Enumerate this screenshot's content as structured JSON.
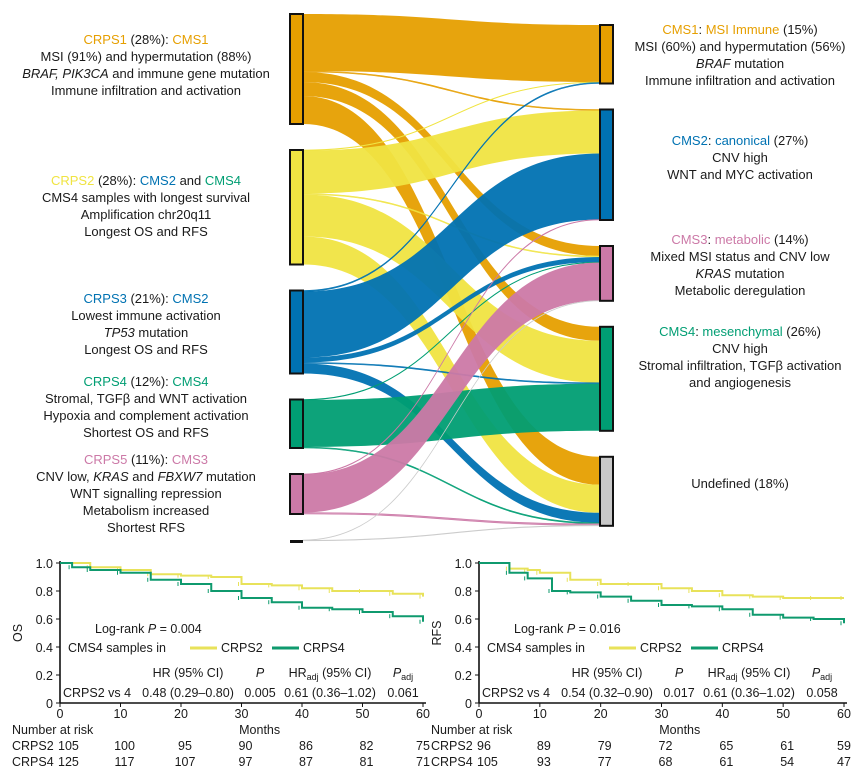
{
  "colors": {
    "CRPS1": "#E69F00",
    "CRPS2": "#F0E442",
    "CRPS3": "#0072B2",
    "CRPS4": "#009E73",
    "CRPS5": "#CC79A7",
    "unassigned": "#111111",
    "CMS1": "#E69F00",
    "CMS2": "#0072B2",
    "CMS3": "#CC79A7",
    "CMS4": "#009E73",
    "Undefined": "#C8C8C8",
    "text": "#1a1a1a"
  },
  "sankey": {
    "left_labels": [
      {
        "lines": [
          [
            {
              "t": "CRPS1",
              "c": "CRPS1"
            },
            {
              "t": " (28%): "
            },
            {
              "t": "CMS1",
              "c": "CMS1"
            }
          ],
          [
            {
              "t": "MSI (91%) and hypermutation (88%)"
            }
          ],
          [
            {
              "t": "BRAF, PIK3CA",
              "i": true
            },
            {
              "t": " and immune gene mutation"
            }
          ],
          [
            {
              "t": "Immune infiltration and activation"
            }
          ]
        ]
      },
      {
        "lines": [
          [
            {
              "t": "CRPS2",
              "c": "CRPS2"
            },
            {
              "t": " (28%): "
            },
            {
              "t": "CMS2",
              "c": "CMS2"
            },
            {
              "t": " and "
            },
            {
              "t": "CMS4",
              "c": "CMS4"
            }
          ],
          [
            {
              "t": "CMS4 samples with longest survival"
            }
          ],
          [
            {
              "t": "Amplification chr20q11"
            }
          ],
          [
            {
              "t": "Longest OS and RFS"
            }
          ]
        ]
      },
      {
        "lines": [
          [
            {
              "t": "CRPS3",
              "c": "CRPS3"
            },
            {
              "t": " (21%): "
            },
            {
              "t": "CMS2",
              "c": "CMS2"
            }
          ],
          [
            {
              "t": "Lowest immune activation"
            }
          ],
          [
            {
              "t": "TP53",
              "i": true
            },
            {
              "t": " mutation"
            }
          ],
          [
            {
              "t": "Longest OS and RFS"
            }
          ]
        ]
      },
      {
        "lines": [
          [
            {
              "t": "CRPS4",
              "c": "CRPS4"
            },
            {
              "t": " (12%): "
            },
            {
              "t": "CMS4",
              "c": "CMS4"
            }
          ],
          [
            {
              "t": "Stromal, TGFβ and WNT activation"
            }
          ],
          [
            {
              "t": "Hypoxia and complement activation"
            }
          ],
          [
            {
              "t": "Shortest OS and RFS"
            }
          ]
        ]
      },
      {
        "lines": [
          [
            {
              "t": "CRPS5",
              "c": "CRPS5"
            },
            {
              "t": " (11%): "
            },
            {
              "t": "CMS3",
              "c": "CMS3"
            }
          ],
          [
            {
              "t": "CNV low, "
            },
            {
              "t": "KRAS",
              "i": true
            },
            {
              "t": " and "
            },
            {
              "t": "FBXW7",
              "i": true
            },
            {
              "t": " mutation"
            }
          ],
          [
            {
              "t": "WNT signalling repression"
            }
          ],
          [
            {
              "t": "Metabolism increased"
            }
          ],
          [
            {
              "t": "Shortest RFS"
            }
          ]
        ]
      }
    ],
    "right_labels": [
      {
        "lines": [
          [
            {
              "t": "CMS1",
              "c": "CMS1"
            },
            {
              "t": ": "
            },
            {
              "t": "MSI Immune",
              "c": "CMS1"
            },
            {
              "t": " (15%)"
            }
          ],
          [
            {
              "t": "MSI (60%) and hypermutation (56%)"
            }
          ],
          [
            {
              "t": "BRAF",
              "i": true
            },
            {
              "t": " mutation"
            }
          ],
          [
            {
              "t": "Immune infiltration and activation"
            }
          ]
        ]
      },
      {
        "lines": [
          [
            {
              "t": "CMS2",
              "c": "CMS2"
            },
            {
              "t": ": "
            },
            {
              "t": "canonical",
              "c": "CMS2"
            },
            {
              "t": " (27%)"
            }
          ],
          [
            {
              "t": "CNV high"
            }
          ],
          [
            {
              "t": "WNT and MYC activation"
            }
          ]
        ]
      },
      {
        "lines": [
          [
            {
              "t": "CMS3",
              "c": "CMS3"
            },
            {
              "t": ": "
            },
            {
              "t": "metabolic",
              "c": "CMS3"
            },
            {
              "t": " (14%)"
            }
          ],
          [
            {
              "t": "Mixed MSI status and CNV low"
            }
          ],
          [
            {
              "t": "KRAS",
              "i": true
            },
            {
              "t": " mutation"
            }
          ],
          [
            {
              "t": "Metabolic deregulation"
            }
          ]
        ]
      },
      {
        "lines": [
          [
            {
              "t": "CMS4",
              "c": "CMS4"
            },
            {
              "t": ": "
            },
            {
              "t": "mesenchymal",
              "c": "CMS4"
            },
            {
              "t": " (26%)"
            }
          ],
          [
            {
              "t": "CNV high"
            }
          ],
          [
            {
              "t": "Stromal infiltration, TGFβ activation"
            }
          ],
          [
            {
              "t": "and angiogenesis"
            }
          ]
        ]
      },
      {
        "lines": [
          [
            {
              "t": "Undefined (18%)"
            }
          ]
        ]
      }
    ]
  },
  "chart_data": [
    {
      "type": "sankey",
      "left_nodes": [
        "CRPS1",
        "CRPS2",
        "CRPS3",
        "CRPS4",
        "CRPS5",
        "unassigned"
      ],
      "right_nodes": [
        "CMS1",
        "CMS2",
        "CMS3",
        "CMS4",
        "Undefined"
      ],
      "flows": [
        [
          "CRPS1",
          "CMS1",
          57
        ],
        [
          "CRPS1",
          "CMS2",
          1
        ],
        [
          "CRPS1",
          "CMS3",
          10
        ],
        [
          "CRPS1",
          "CMS4",
          14
        ],
        [
          "CRPS1",
          "Undefined",
          28
        ],
        [
          "CRPS2",
          "CMS1",
          0.5
        ],
        [
          "CRPS2",
          "CMS2",
          43
        ],
        [
          "CRPS2",
          "CMS3",
          1
        ],
        [
          "CRPS2",
          "CMS4",
          42
        ],
        [
          "CRPS2",
          "Undefined",
          28
        ],
        [
          "CRPS3",
          "CMS1",
          1
        ],
        [
          "CRPS3",
          "CMS2",
          66
        ],
        [
          "CRPS3",
          "CMS3",
          5
        ],
        [
          "CRPS3",
          "CMS4",
          1
        ],
        [
          "CRPS3",
          "Undefined",
          10
        ],
        [
          "CRPS4",
          "CMS3",
          0.5
        ],
        [
          "CRPS4",
          "CMS4",
          47
        ],
        [
          "CRPS4",
          "Undefined",
          1
        ],
        [
          "CRPS5",
          "CMS2",
          0.5
        ],
        [
          "CRPS5",
          "CMS3",
          38
        ],
        [
          "CRPS5",
          "Undefined",
          1.5
        ],
        [
          "unassigned",
          "CMS3",
          0.3
        ],
        [
          "unassigned",
          "Undefined",
          0.5
        ]
      ]
    },
    {
      "type": "line",
      "ylabel": "OS",
      "xlabel": "Months",
      "xlim": [
        0,
        60
      ],
      "ylim": [
        0,
        1
      ],
      "xticks": [
        "0",
        "10",
        "20",
        "30",
        "40",
        "50",
        "60"
      ],
      "yticks": [
        "0",
        "0.2",
        "0.4",
        "0.6",
        "0.8",
        "1.0"
      ],
      "logrank": {
        "label": "Log-rank ",
        "p": "P",
        "rest": " = 0.004"
      },
      "legend_title": "CMS4 samples in",
      "series": [
        {
          "name": "CRPS2",
          "color": "#E8E25A",
          "x": [
            0,
            5,
            10,
            15,
            20,
            25,
            30,
            35,
            40,
            45,
            50,
            55,
            60
          ],
          "y": [
            1.0,
            0.97,
            0.95,
            0.92,
            0.91,
            0.9,
            0.85,
            0.84,
            0.82,
            0.8,
            0.8,
            0.78,
            0.76
          ]
        },
        {
          "name": "CRPS4",
          "color": "#0F9A6E",
          "x": [
            0,
            2,
            5,
            10,
            15,
            20,
            25,
            30,
            35,
            40,
            45,
            50,
            55,
            60
          ],
          "y": [
            1.0,
            0.97,
            0.95,
            0.93,
            0.88,
            0.85,
            0.8,
            0.75,
            0.72,
            0.68,
            0.67,
            0.65,
            0.62,
            0.58
          ]
        }
      ],
      "table": {
        "headers": [
          "HR (95% CI)",
          "P",
          "HR",
          "adj",
          " (95% CI)",
          "P",
          "adj"
        ],
        "row": [
          "CRPS2 vs 4",
          "0.48 (0.29–0.80)",
          "0.005",
          "0.61 (0.36–1.02)",
          "0.061"
        ]
      },
      "risk_title": "Number at risk",
      "risk": [
        {
          "name": "CRPS2",
          "values": [
            "105",
            "100",
            "95",
            "90",
            "86",
            "82",
            "75"
          ]
        },
        {
          "name": "CRPS4",
          "values": [
            "125",
            "117",
            "107",
            "97",
            "87",
            "81",
            "71"
          ]
        }
      ]
    },
    {
      "type": "line",
      "ylabel": "RFS",
      "xlabel": "Months",
      "xlim": [
        0,
        60
      ],
      "ylim": [
        0,
        1
      ],
      "xticks": [
        "0",
        "10",
        "20",
        "30",
        "40",
        "50",
        "60"
      ],
      "yticks": [
        "0",
        "0.2",
        "0.4",
        "0.6",
        "0.8",
        "1.0"
      ],
      "logrank": {
        "label": "Log-rank ",
        "p": "P",
        "rest": " = 0.016"
      },
      "legend_title": "CMS4 samples in",
      "series": [
        {
          "name": "CRPS2",
          "color": "#E8E25A",
          "x": [
            0,
            5,
            8,
            10,
            15,
            20,
            25,
            30,
            35,
            40,
            45,
            50,
            55,
            60
          ],
          "y": [
            1.0,
            0.96,
            0.95,
            0.93,
            0.88,
            0.85,
            0.85,
            0.82,
            0.8,
            0.77,
            0.76,
            0.75,
            0.75,
            0.75
          ]
        },
        {
          "name": "CRPS4",
          "color": "#0F9A6E",
          "x": [
            0,
            5,
            8,
            12,
            15,
            20,
            25,
            30,
            35,
            40,
            45,
            50,
            55,
            60
          ],
          "y": [
            1.0,
            0.93,
            0.89,
            0.8,
            0.79,
            0.76,
            0.73,
            0.7,
            0.69,
            0.67,
            0.63,
            0.61,
            0.6,
            0.57
          ]
        }
      ],
      "table": {
        "headers": [
          "HR (95% CI)",
          "P",
          "HR",
          "adj",
          " (95% CI)",
          "P",
          "adj"
        ],
        "row": [
          "CRPS2 vs 4",
          "0.54 (0.32–0.90)",
          "0.017",
          "0.61 (0.36–1.02)",
          "0.058"
        ]
      },
      "risk_title": "Number at risk",
      "risk": [
        {
          "name": "CRPS2",
          "values": [
            "96",
            "89",
            "79",
            "72",
            "65",
            "61",
            "59"
          ]
        },
        {
          "name": "CRPS4",
          "values": [
            "105",
            "93",
            "77",
            "68",
            "61",
            "54",
            "47"
          ]
        }
      ]
    }
  ]
}
